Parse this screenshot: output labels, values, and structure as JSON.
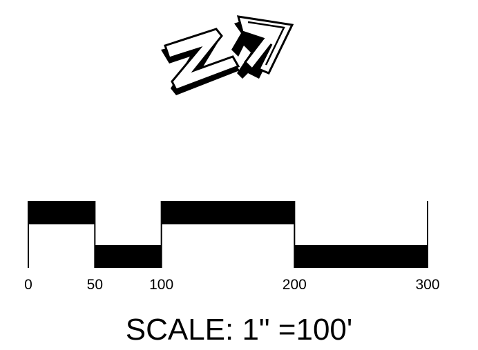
{
  "north_arrow": {
    "icon": "north-arrow-icon",
    "fill_color": "#000000",
    "outline_color": "#000000",
    "face_color": "#ffffff"
  },
  "scale_bar": {
    "unit": "feet",
    "ticks": [
      {
        "value": 0,
        "label": "0"
      },
      {
        "value": 50,
        "label": "50"
      },
      {
        "value": 100,
        "label": "100"
      },
      {
        "value": 200,
        "label": "200"
      },
      {
        "value": 300,
        "label": "300"
      }
    ],
    "segments": [
      {
        "from": 0,
        "to": 50,
        "band": "upper"
      },
      {
        "from": 50,
        "to": 100,
        "band": "lower"
      },
      {
        "from": 100,
        "to": 200,
        "band": "upper"
      },
      {
        "from": 200,
        "to": 300,
        "band": "lower"
      }
    ],
    "bar_color": "#000000"
  },
  "scale_text": "SCALE: 1\" =100'"
}
